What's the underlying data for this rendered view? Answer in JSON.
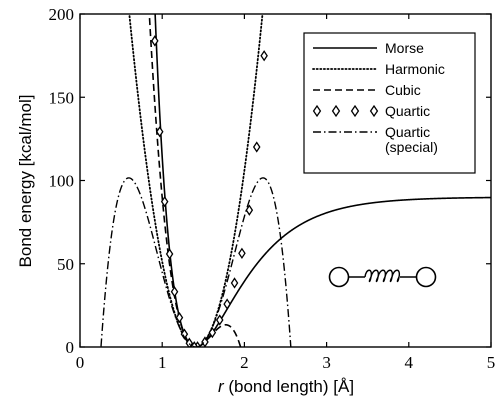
{
  "chart_data": {
    "type": "line",
    "title": "",
    "xlabel": {
      "italic": "r",
      "rest": " (bond length) [Å]"
    },
    "ylabel": "Bond energy [kcal/mol]",
    "xlim": [
      0,
      5
    ],
    "ylim": [
      0,
      200
    ],
    "xticks": [
      "0",
      "1",
      "2",
      "3",
      "4",
      "5"
    ],
    "yticks": [
      "0",
      "50",
      "100",
      "150",
      "200"
    ],
    "grid": false,
    "legend_position": "top-right",
    "parameters": {
      "r0": 1.41,
      "De": 90,
      "a": 1.84
    },
    "series": [
      {
        "name": "Morse",
        "style": "solid",
        "formula": "D*(1-exp(-a*(r-r0)))^2"
      },
      {
        "name": "Harmonic",
        "style": "dotted",
        "formula": "D*a^2*(r-r0)^2"
      },
      {
        "name": "Cubic",
        "style": "dashed",
        "formula": "D*a^2*(r-r0)^2*(1-a*(r-r0))"
      },
      {
        "name": "Quartic",
        "style": "diamond",
        "formula": "D*a^2*(r-r0)^2*(1-a*(r-r0)+(7/12)*a^2*(r-r0)^2)"
      },
      {
        "name": "Quartic\n(special)",
        "style": "dashdot",
        "formula": "D*a^2*(r-r0)^2*(1-0.75*(r-r0)^2)"
      }
    ],
    "annotation": {
      "icon": "spring-molecule-icon"
    }
  }
}
